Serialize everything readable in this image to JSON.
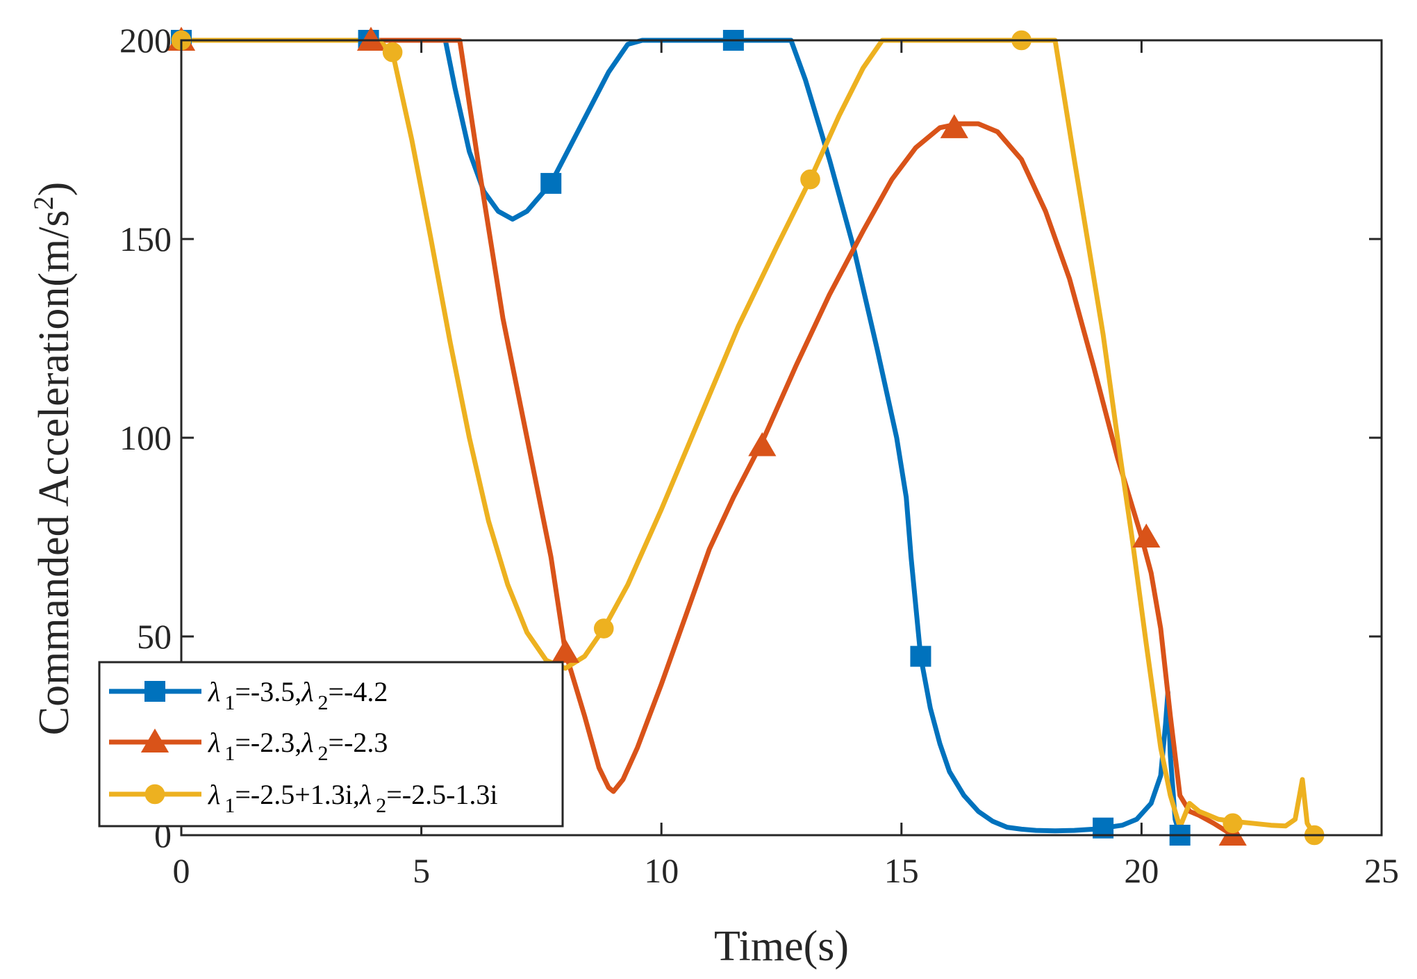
{
  "chart_data": {
    "type": "line",
    "title": "",
    "xlabel": "Time(s)",
    "ylabel": "Commanded Acceleration(m/s",
    "ylabel_sup": "2",
    "ylabel_close": ")",
    "xlim": [
      0,
      25
    ],
    "ylim": [
      0,
      200
    ],
    "xticks": [
      0,
      5,
      10,
      15,
      20,
      25
    ],
    "yticks": [
      0,
      50,
      100,
      150,
      200
    ],
    "xtick_labels": [
      "0",
      "5",
      "10",
      "15",
      "20",
      "25"
    ],
    "ytick_labels": [
      "0",
      "50",
      "100",
      "150",
      "200"
    ],
    "grid": false,
    "legend_position": "bottom-left",
    "series": [
      {
        "name": "λ1=-3.5,λ2=-4.2",
        "color": "#0072BD",
        "marker": "square",
        "legend_parts": [
          {
            "text": "λ",
            "sub": "1",
            "rest": "=-3.5,"
          },
          {
            "text": "λ",
            "sub": "2",
            "rest": "=-4.2"
          }
        ],
        "x": [
          0,
          4,
          5.5,
          5.7,
          6.0,
          6.3,
          6.6,
          6.9,
          7.2,
          7.7,
          8.3,
          8.9,
          9.3,
          9.6,
          11.5,
          12.7,
          13.0,
          13.5,
          14.0,
          14.5,
          14.9,
          15.1,
          15.2,
          15.4,
          15.6,
          15.8,
          16.0,
          16.3,
          16.6,
          16.9,
          17.2,
          17.5,
          17.8,
          18.2,
          18.6,
          19.0,
          19.2,
          19.6,
          19.9,
          20.2,
          20.4,
          20.5,
          20.55,
          20.6,
          20.7,
          20.8
        ],
        "y": [
          200,
          200,
          200,
          188,
          172,
          162,
          157,
          155,
          157,
          164,
          178,
          192,
          199,
          200,
          200,
          200,
          190,
          170,
          148,
          122,
          100,
          85,
          70,
          45,
          32,
          23,
          16,
          10,
          6,
          3.5,
          2,
          1.5,
          1.2,
          1.1,
          1.2,
          1.5,
          1.8,
          2.5,
          4,
          8,
          15,
          28,
          36,
          20,
          4,
          0
        ]
      },
      {
        "name": "λ1=-2.3,λ2=-2.3",
        "color": "#D95319",
        "marker": "triangle",
        "legend_parts": [
          {
            "text": "λ",
            "sub": "1",
            "rest": "=-2.3,"
          },
          {
            "text": "λ",
            "sub": "2",
            "rest": "=-2.3"
          }
        ],
        "x": [
          0,
          4,
          5.8,
          6.2,
          6.7,
          7.2,
          7.7,
          8.0,
          8.4,
          8.7,
          8.9,
          9.0,
          9.2,
          9.5,
          10.0,
          10.5,
          11.0,
          11.5,
          12.1,
          12.8,
          13.5,
          14.2,
          14.8,
          15.3,
          15.8,
          16.2,
          16.6,
          17.0,
          17.5,
          18.0,
          18.5,
          19.0,
          19.5,
          20.0,
          20.2,
          20.4,
          20.6,
          20.8,
          21.0,
          21.2,
          21.5,
          21.9
        ],
        "y": [
          200,
          200,
          200,
          168,
          130,
          100,
          70,
          46,
          30,
          17,
          12,
          11,
          14,
          22,
          38,
          55,
          72,
          85,
          99,
          118,
          136,
          152,
          165,
          173,
          178,
          179,
          179,
          177,
          170,
          157,
          140,
          118,
          95,
          75,
          66,
          52,
          30,
          10,
          6,
          5,
          3,
          0
        ]
      },
      {
        "name": "λ1=-2.5+1.3i,λ2=-2.5-1.3i",
        "color": "#EDB120",
        "marker": "circle",
        "legend_parts": [
          {
            "text": "λ",
            "sub": "1",
            "rest": "=-2.5+1.3i,"
          },
          {
            "text": "λ",
            "sub": "2",
            "rest": "=-2.5-1.3i"
          }
        ],
        "x": [
          0,
          4.1,
          4.4,
          4.8,
          5.2,
          5.6,
          6.0,
          6.4,
          6.8,
          7.2,
          7.6,
          8.0,
          8.4,
          8.8,
          9.3,
          10.0,
          10.8,
          11.6,
          12.4,
          13.1,
          13.7,
          14.2,
          14.6,
          16.0,
          17.5,
          18.2,
          18.6,
          18.9,
          19.2,
          19.5,
          19.8,
          20.1,
          20.4,
          20.6,
          20.8,
          21.0,
          21.2,
          21.4,
          21.6,
          21.9,
          22.3,
          22.7,
          23.0,
          23.2,
          23.35,
          23.45,
          23.6
        ],
        "y": [
          200,
          200,
          197,
          175,
          150,
          124,
          100,
          79,
          63,
          51,
          44,
          42,
          45,
          52,
          63,
          82,
          105,
          128,
          148,
          165,
          181,
          193,
          200,
          200,
          200,
          200,
          170,
          148,
          126,
          100,
          75,
          48,
          22,
          10,
          2,
          8,
          6,
          5,
          4,
          3.5,
          3,
          2.5,
          2.3,
          4,
          14,
          3,
          0
        ]
      }
    ],
    "markers": [
      {
        "series": 0,
        "points": [
          [
            0,
            200
          ],
          [
            3.9,
            200
          ],
          [
            7.7,
            164
          ],
          [
            11.5,
            200
          ],
          [
            15.4,
            45
          ],
          [
            19.2,
            1.8
          ],
          [
            20.8,
            0
          ]
        ]
      },
      {
        "series": 1,
        "points": [
          [
            0,
            200
          ],
          [
            3.95,
            200
          ],
          [
            8.0,
            46
          ],
          [
            12.1,
            98
          ],
          [
            16.1,
            178
          ],
          [
            20.1,
            75
          ],
          [
            21.9,
            0
          ]
        ]
      },
      {
        "series": 2,
        "points": [
          [
            0,
            200
          ],
          [
            4.4,
            197
          ],
          [
            8.8,
            52
          ],
          [
            13.1,
            165
          ],
          [
            17.5,
            200
          ],
          [
            21.9,
            3
          ],
          [
            23.6,
            0
          ]
        ]
      }
    ]
  }
}
